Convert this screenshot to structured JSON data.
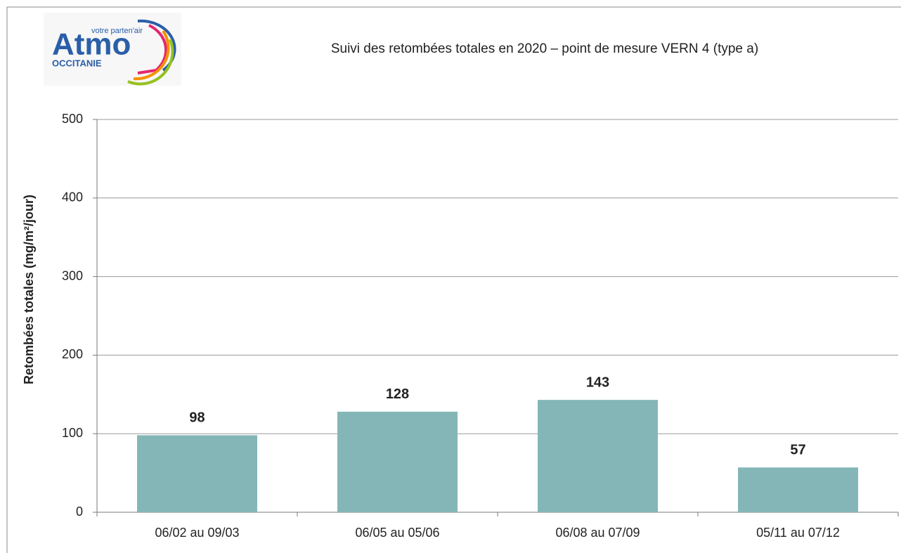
{
  "logo": {
    "tagline": "votre parten'air",
    "name": "Atmo",
    "region": "OCCITANIE"
  },
  "chart_data": {
    "type": "bar",
    "title": "Suivi des retombées totales en 2020 – point de mesure VERN 4 (type a)",
    "y_label": "Retombées totales (mg/m²/jour)",
    "categories": [
      "06/02 au 09/03",
      "06/05 au 05/06",
      "06/08 au 07/09",
      "05/11 au 07/12"
    ],
    "values": [
      98,
      128,
      143,
      57
    ],
    "color": "#84b6b7",
    "ylim": [
      0,
      500
    ],
    "yticks": [
      0,
      100,
      200,
      300,
      400,
      500
    ],
    "grid": true
  }
}
